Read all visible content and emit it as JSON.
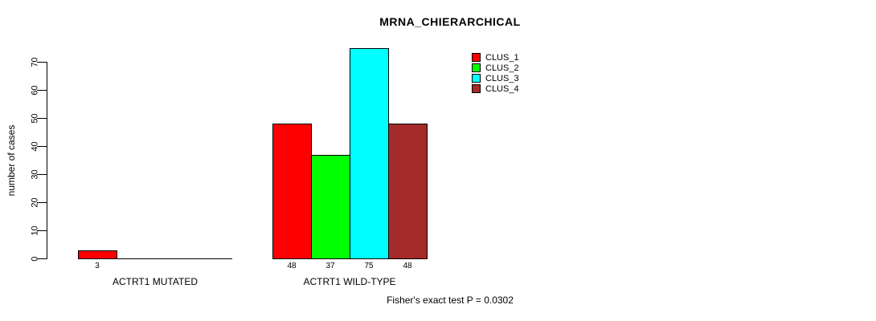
{
  "page": {
    "background": "#ffffff",
    "axis_color": "#000000",
    "text_color": "#000000"
  },
  "chart_data": {
    "type": "bar",
    "title": "MRNA_CHIERARCHICAL",
    "ylabel": "number of cases",
    "xlabel": "",
    "ylim": [
      0,
      70
    ],
    "yticks": [
      0,
      10,
      20,
      30,
      40,
      50,
      60,
      70
    ],
    "grid": false,
    "legend_position": "top-right",
    "legend": [
      {
        "label": "CLUS_1",
        "color": "#ff0000"
      },
      {
        "label": "CLUS_2",
        "color": "#00ff00"
      },
      {
        "label": "CLUS_3",
        "color": "#00ffff"
      },
      {
        "label": "CLUS_4",
        "color": "#a52a2a"
      }
    ],
    "groups": [
      {
        "label": "ACTRT1 MUTATED",
        "values": [
          3,
          0,
          0,
          0
        ]
      },
      {
        "label": "ACTRT1 WILD-TYPE",
        "values": [
          48,
          37,
          75,
          48
        ]
      }
    ],
    "bar_value_labels_shown": [
      "3",
      "48",
      "37",
      "75",
      "48"
    ],
    "annotation": "Fisher's exact test P = 0.0302"
  }
}
